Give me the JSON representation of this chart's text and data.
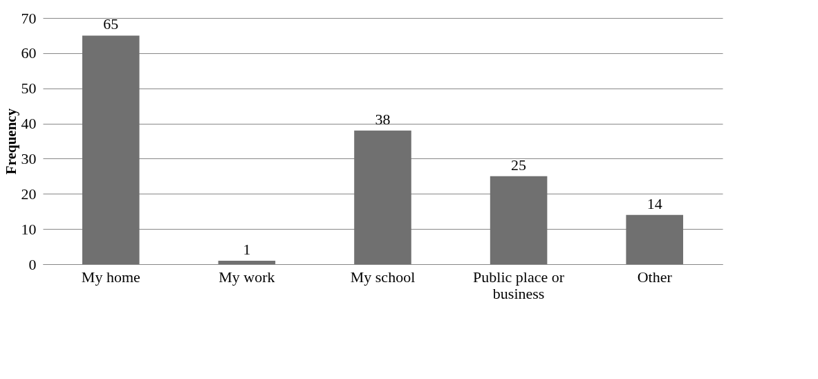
{
  "chart_data": {
    "type": "bar",
    "ylabel": "Frequency",
    "categories": [
      "My home",
      "My work",
      "My school",
      "Public place or\nbusiness",
      "Other"
    ],
    "values": [
      65,
      1,
      38,
      25,
      14
    ],
    "color": "#707070",
    "ylim": [
      0,
      70
    ],
    "yticks": [
      0,
      10,
      20,
      30,
      40,
      50,
      60,
      70
    ],
    "grid": "y",
    "data_labels": true
  }
}
